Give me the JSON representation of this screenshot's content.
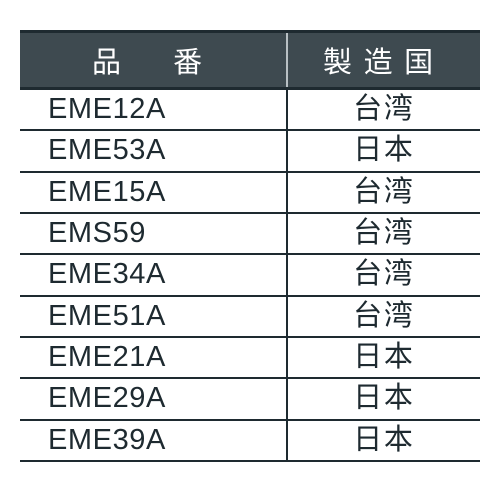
{
  "table": {
    "type": "table",
    "header_bg": "#3e4a50",
    "header_fg": "#ffffff",
    "header_divider": "#b8c0c4",
    "rule_color": "#1e2a30",
    "body_fg": "#1e2a30",
    "background_color": "#ffffff",
    "header_fontsize": 29,
    "body_fontsize": 29,
    "col_widths_pct": [
      58,
      42
    ],
    "columns": [
      "品　番",
      "製造国"
    ],
    "rows": [
      [
        "EME12A",
        "台湾"
      ],
      [
        "EME53A",
        "日本"
      ],
      [
        "EME15A",
        "台湾"
      ],
      [
        "EMS59",
        "台湾"
      ],
      [
        "EME34A",
        "台湾"
      ],
      [
        "EME51A",
        "台湾"
      ],
      [
        "EME21A",
        "日本"
      ],
      [
        "EME29A",
        "日本"
      ],
      [
        "EME39A",
        "日本"
      ]
    ]
  }
}
